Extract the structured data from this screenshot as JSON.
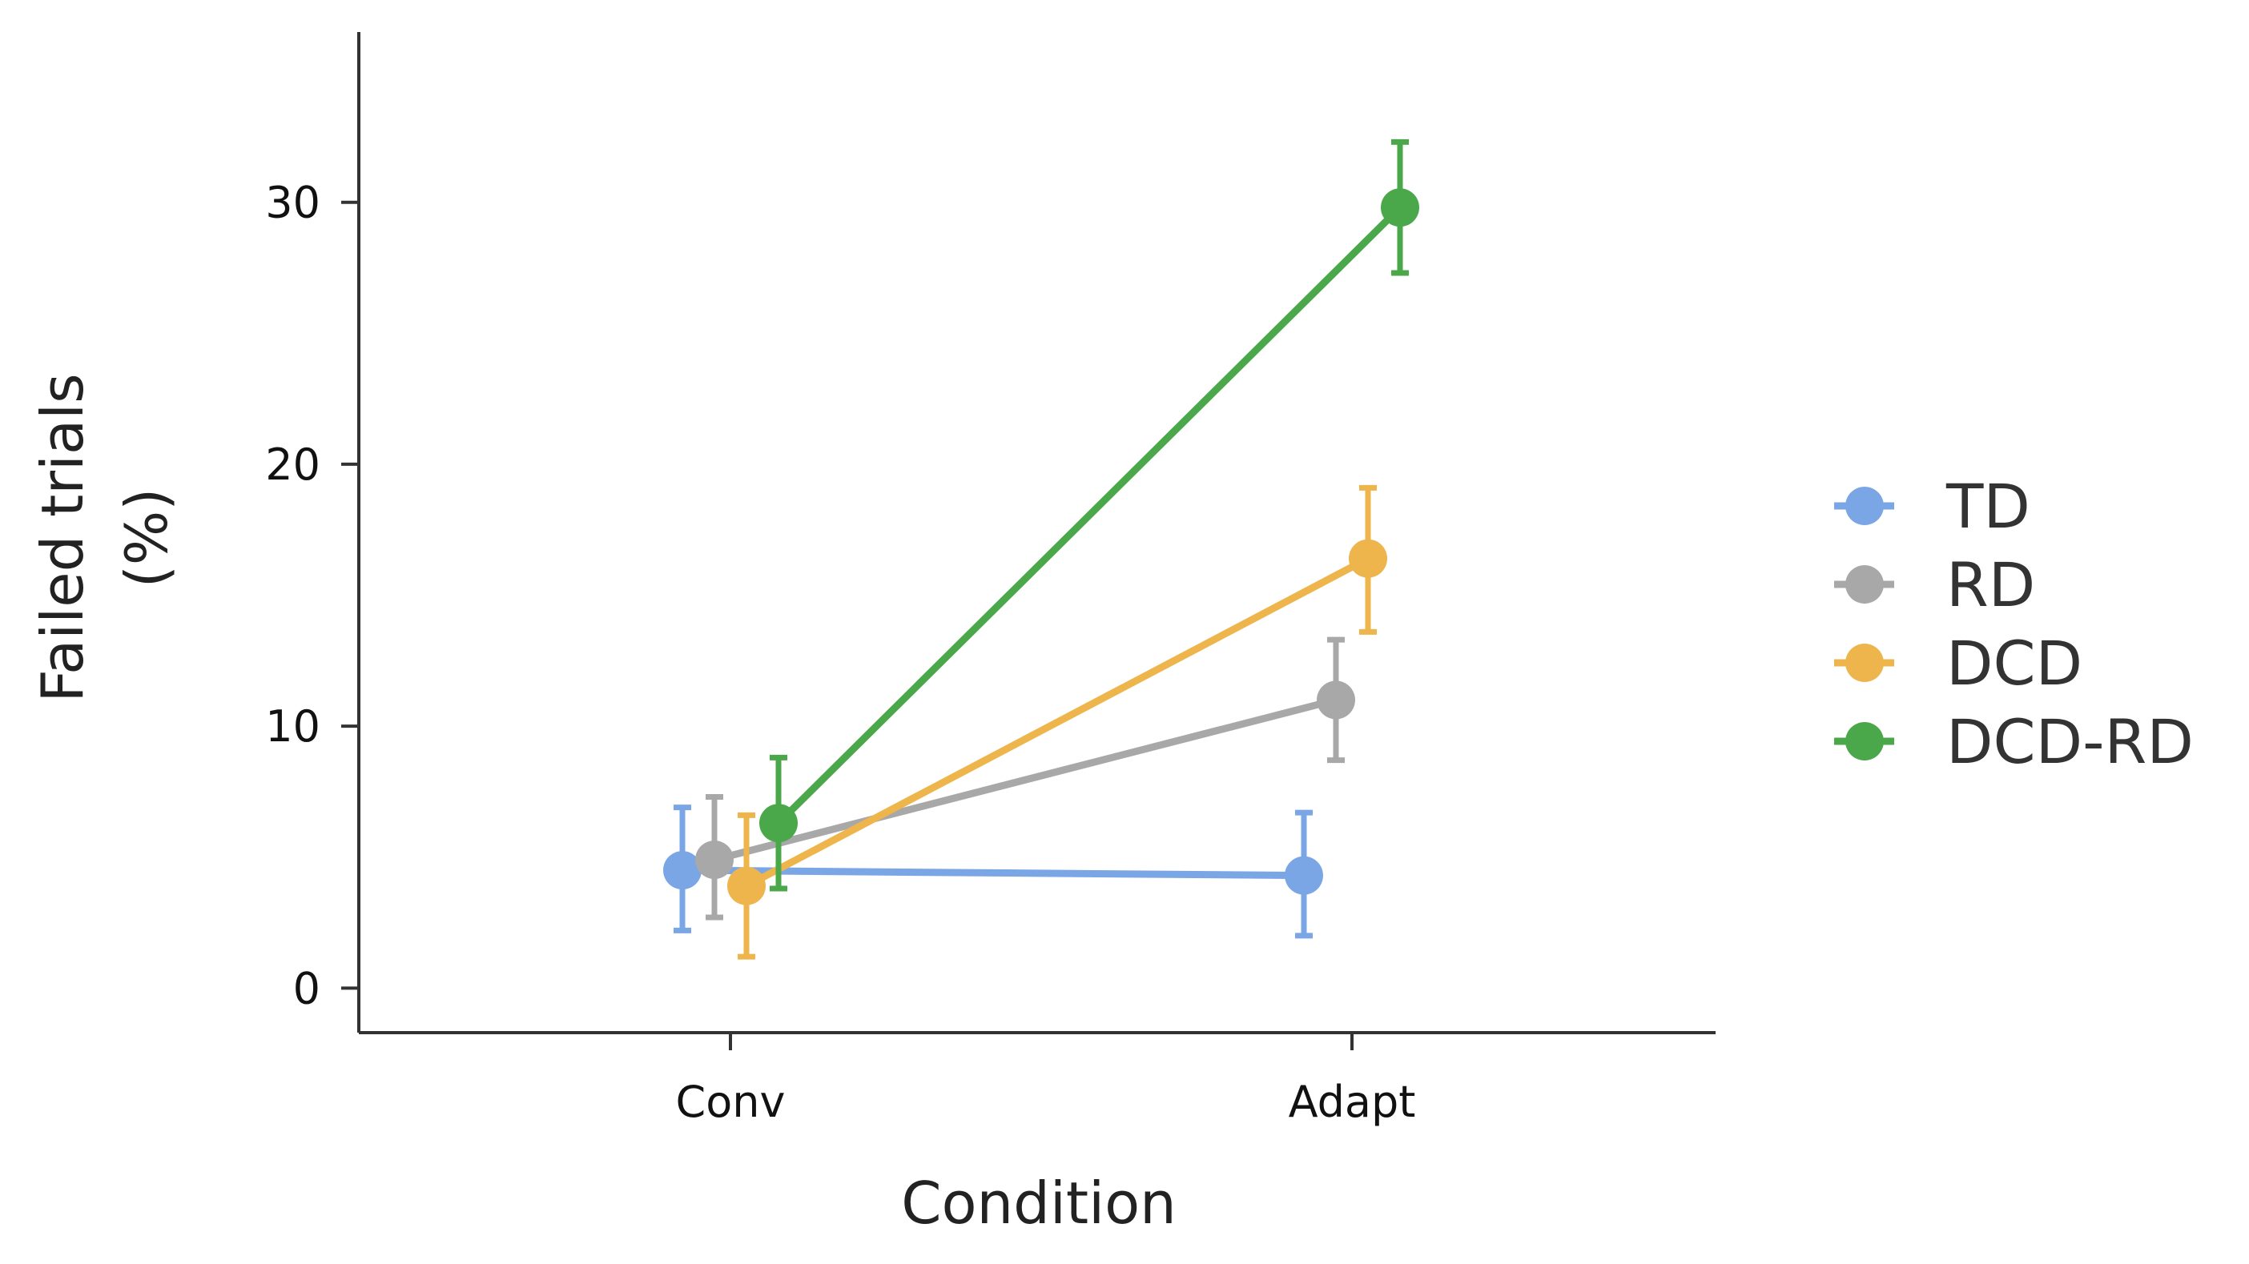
{
  "chart_data": {
    "type": "line",
    "title": "",
    "xlabel": "Condition",
    "ylabel_lines": [
      "Failed trials",
      "(%)"
    ],
    "categories": [
      "Conv",
      "Adapt"
    ],
    "yticks": [
      0,
      10,
      20,
      30
    ],
    "ylim": [
      -1.7,
      36.5
    ],
    "grid": false,
    "legend_position": "right",
    "series": [
      {
        "name": "TD",
        "color": "#7aa6e6",
        "values": [
          4.5,
          4.3
        ],
        "error_low": [
          2.2,
          2.0
        ],
        "error_high": [
          6.9,
          6.7
        ]
      },
      {
        "name": "RD",
        "color": "#a8a8a8",
        "values": [
          4.9,
          11.0
        ],
        "error_low": [
          2.7,
          8.7
        ],
        "error_high": [
          7.3,
          13.3
        ]
      },
      {
        "name": "DCD",
        "color": "#edb54c",
        "values": [
          3.9,
          16.4
        ],
        "error_low": [
          1.2,
          13.6
        ],
        "error_high": [
          6.6,
          19.1
        ]
      },
      {
        "name": "DCD-RD",
        "color": "#4aa84a",
        "values": [
          6.3,
          29.8
        ],
        "error_low": [
          3.8,
          27.3
        ],
        "error_high": [
          8.8,
          32.3
        ]
      }
    ]
  }
}
